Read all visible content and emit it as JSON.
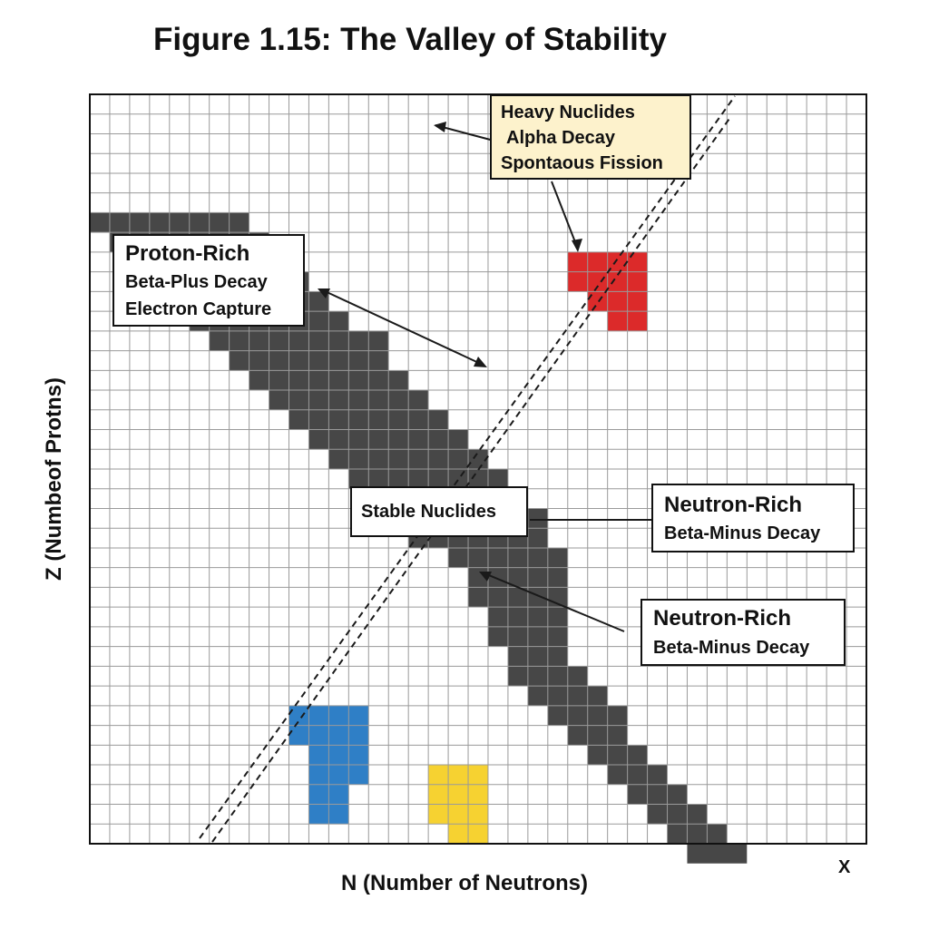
{
  "title": "Figure 1.15: The Valley of Stability",
  "axes": {
    "xlabel": "N (Number of Neutrons)",
    "ylabel": "Z (Numbeof Protns)",
    "x_corner_mark": "X"
  },
  "labels": {
    "heavy": [
      "Heavy Nuclides",
      "Alpha Decay",
      "Spontaous Fission"
    ],
    "proton_rich": [
      "Proton-Rich",
      "Beta-Plus Decay",
      "Electron Capture"
    ],
    "stable": "Stable Nuclides",
    "neutron_rich_a": [
      "Neutron-Rich",
      "Beta-Minus Decay"
    ],
    "neutron_rich_b": [
      "Neutron-Rich",
      "Beta-Minus Decay"
    ]
  },
  "colors": {
    "stable": "#474747",
    "proton_rich": "#2f7fc6",
    "heavy": "#f6d231",
    "neutron_rich": "#dc2a2a",
    "grid": "#9a9a9a",
    "heavy_label_bg": "#fdf2cc"
  },
  "grid": {
    "cols": 39,
    "rows": 38
  },
  "regions": {
    "stable": [
      [
        6,
        0,
        7
      ],
      [
        7,
        1,
        8
      ],
      [
        8,
        2,
        9
      ],
      [
        9,
        3,
        10
      ],
      [
        10,
        4,
        11
      ],
      [
        11,
        5,
        12
      ],
      [
        12,
        6,
        14
      ],
      [
        13,
        7,
        14
      ],
      [
        14,
        8,
        15
      ],
      [
        15,
        9,
        16
      ],
      [
        16,
        10,
        17
      ],
      [
        17,
        11,
        18
      ],
      [
        18,
        12,
        19
      ],
      [
        19,
        13,
        20
      ],
      [
        20,
        14,
        21
      ],
      [
        21,
        15,
        22
      ],
      [
        22,
        16,
        22
      ],
      [
        23,
        18,
        23
      ],
      [
        24,
        19,
        23
      ],
      [
        25,
        19,
        23
      ],
      [
        26,
        20,
        23
      ],
      [
        27,
        20,
        23
      ],
      [
        28,
        21,
        23
      ],
      [
        29,
        21,
        24
      ],
      [
        30,
        22,
        25
      ],
      [
        31,
        23,
        26
      ],
      [
        32,
        24,
        26
      ],
      [
        33,
        25,
        27
      ],
      [
        34,
        26,
        28
      ],
      [
        35,
        27,
        29
      ],
      [
        36,
        28,
        30
      ],
      [
        37,
        29,
        31
      ],
      [
        38,
        30,
        32
      ]
    ],
    "proton_rich": [
      [
        31,
        10,
        13
      ],
      [
        32,
        10,
        13
      ],
      [
        33,
        11,
        13
      ],
      [
        34,
        11,
        13
      ],
      [
        35,
        11,
        12
      ],
      [
        36,
        11,
        12
      ]
    ],
    "heavy": [
      [
        34,
        17,
        19
      ],
      [
        35,
        17,
        19
      ],
      [
        36,
        17,
        19
      ],
      [
        37,
        18,
        19
      ]
    ],
    "neutron_rich": [
      [
        8,
        24,
        27
      ],
      [
        9,
        24,
        27
      ],
      [
        10,
        25,
        27
      ],
      [
        11,
        26,
        27
      ]
    ]
  }
}
